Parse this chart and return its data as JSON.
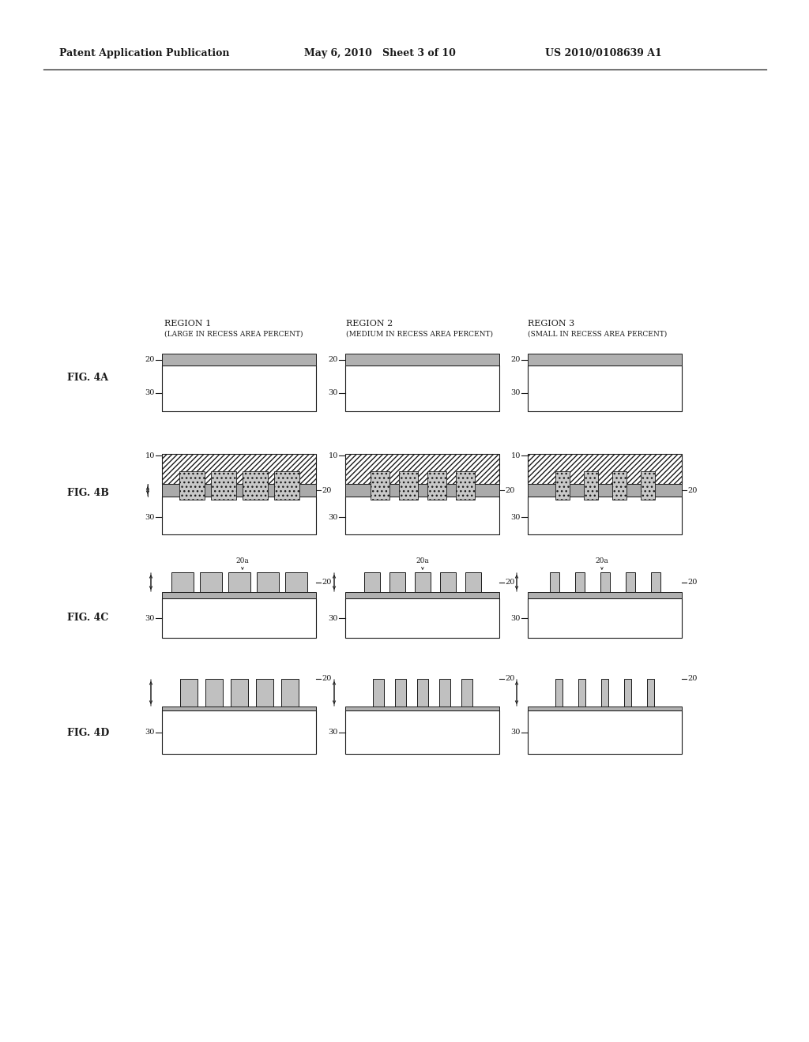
{
  "header_left": "Patent Application Publication",
  "header_mid": "May 6, 2010   Sheet 3 of 10",
  "header_right": "US 2010/0108639 A1",
  "region1_title": "REGION 1",
  "region1_sub": "(LARGE IN RECESS AREA PERCENT)",
  "region2_title": "REGION 2",
  "region2_sub": "(MEDIUM IN RECESS AREA PERCENT)",
  "region3_title": "REGION 3",
  "region3_sub": "(SMALL IN RECESS AREA PERCENT)",
  "bg_color": "#ffffff",
  "lc": "#1a1a1a",
  "gray_top": "#b8b8b8",
  "gray_bump": "#c0c0c0",
  "gray_thin": "#a0a0a0"
}
